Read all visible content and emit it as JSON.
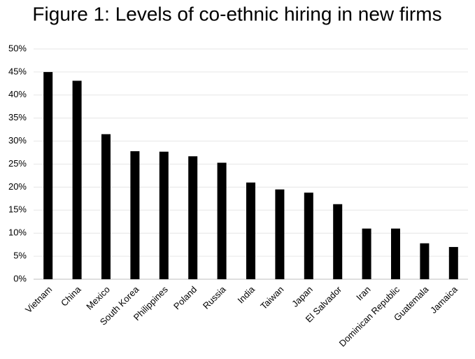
{
  "chart_data": {
    "type": "bar",
    "title": "Figure 1: Levels of co-ethnic hiring in new firms",
    "categories": [
      "Vietnam",
      "China",
      "Mexico",
      "South Korea",
      "Philippines",
      "Poland",
      "Russia",
      "India",
      "Taiwan",
      "Japan",
      "El Salvador",
      "Iran",
      "Dominican Republic",
      "Guatemala",
      "Jamaica"
    ],
    "values": [
      45,
      43.1,
      31.5,
      27.8,
      27.7,
      26.7,
      25.3,
      21,
      19.5,
      18.8,
      16.3,
      11,
      11,
      7.8,
      7
    ],
    "color": "#000000",
    "ylim": [
      0,
      50
    ],
    "yticks": [
      {
        "value": 0,
        "label": "0%"
      },
      {
        "value": 5,
        "label": "5%"
      },
      {
        "value": 10,
        "label": "10%"
      },
      {
        "value": 15,
        "label": "15%"
      },
      {
        "value": 20,
        "label": "20%"
      },
      {
        "value": 25,
        "label": "25%"
      },
      {
        "value": 30,
        "label": "30%"
      },
      {
        "value": 35,
        "label": "35%"
      },
      {
        "value": 40,
        "label": "40%"
      },
      {
        "value": 45,
        "label": "45%"
      },
      {
        "value": 50,
        "label": "50%"
      }
    ],
    "grid": true
  }
}
